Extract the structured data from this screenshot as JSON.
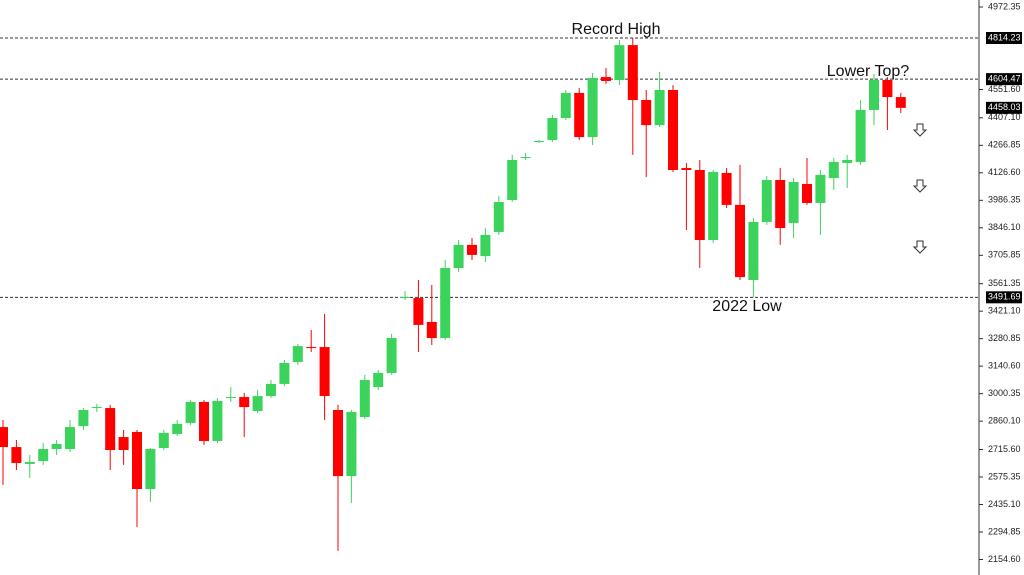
{
  "chart_data": {
    "type": "candlestick",
    "up_color": "#3cd35c",
    "down_color": "#ff0000",
    "open": [
      2830,
      2728,
      2642,
      2657,
      2718,
      2718,
      2835,
      2927,
      2927,
      2779,
      2805,
      2514,
      2723,
      2795,
      2851,
      2958,
      2759,
      2978,
      2983,
      2912,
      2988,
      3050,
      3162,
      3238,
      3238,
      2917,
      2580,
      2881,
      3034,
      3106,
      3488,
      3488,
      3366,
      3284,
      3641,
      3759,
      3702,
      3825,
      3988,
      4202,
      4284,
      4294,
      4406,
      4534,
      4309,
      4615,
      4600,
      4778,
      4498,
      4370,
      4549,
      4151,
      4141,
      3784,
      4126,
      3963,
      3580,
      3876,
      4090,
      3871,
      4070,
      3973,
      4100,
      4177,
      4182,
      4447,
      4600,
      4513
    ],
    "high": [
      2866,
      2764,
      2688,
      2749,
      2764,
      2866,
      2927,
      2948,
      2943,
      2815,
      2815,
      2723,
      2815,
      2866,
      2968,
      2968,
      2978,
      3034,
      3004,
      3019,
      3070,
      3172,
      3254,
      3325,
      3407,
      2943,
      2917,
      3096,
      3121,
      3305,
      3524,
      3580,
      3555,
      3682,
      3784,
      3794,
      3845,
      4008,
      4218,
      4228,
      4294,
      4422,
      4549,
      4559,
      4636,
      4661,
      4804,
      4814,
      4549,
      4641,
      4574,
      4177,
      4192,
      4141,
      4151,
      4167,
      3896,
      4110,
      4151,
      4100,
      4202,
      4141,
      4202,
      4218,
      4498,
      4631,
      4615,
      4534
    ],
    "low": [
      2535,
      2611,
      2570,
      2637,
      2688,
      2703,
      2815,
      2907,
      2611,
      2637,
      2320,
      2448,
      2713,
      2784,
      2841,
      2739,
      2749,
      2958,
      2779,
      2902,
      2978,
      3039,
      3147,
      3213,
      2866,
      2198,
      2443,
      2871,
      3019,
      3096,
      3478,
      3213,
      3249,
      3274,
      3621,
      3682,
      3672,
      3810,
      3978,
      4192,
      4279,
      4284,
      4396,
      4294,
      4268,
      4580,
      4574,
      4218,
      4105,
      4360,
      4131,
      3835,
      3641,
      3769,
      3947,
      3580,
      3492,
      3861,
      3759,
      3794,
      3963,
      3810,
      4039,
      4049,
      4167,
      4370,
      4345,
      4432
    ],
    "close": [
      2728,
      2647,
      2652,
      2718,
      2744,
      2830,
      2917,
      2932,
      2713,
      2713,
      2514,
      2718,
      2800,
      2846,
      2958,
      2759,
      2963,
      2983,
      2932,
      2988,
      3050,
      3157,
      3243,
      3233,
      2988,
      2580,
      2907,
      3070,
      3106,
      3284,
      3493,
      3351,
      3284,
      3641,
      3759,
      3708,
      3810,
      3978,
      4192,
      4207,
      4289,
      4406,
      4534,
      4309,
      4610,
      4595,
      4778,
      4498,
      4370,
      4549,
      4141,
      4141,
      3784,
      4131,
      3963,
      3595,
      3876,
      4090,
      3845,
      4080,
      3973,
      4116,
      4182,
      4192,
      4447,
      4600,
      4513,
      4458.03
    ],
    "levels": [
      4814.23,
      4604.47,
      3491.69
    ],
    "annotations": [
      "Record High",
      "Lower Top?",
      "2022 Low"
    ],
    "ylim": [
      2075.5,
      5008
    ],
    "yticks": [
      4972.35,
      {
        "value": 4551.6,
        "label": "4551.60"
      },
      {
        "value": 4407.1,
        "label": "4407.10"
      },
      4266.85,
      {
        "value": 4126.6,
        "label": "4126.60"
      },
      3986.35,
      {
        "value": 3846.1,
        "label": "3846.10"
      },
      3705.85,
      3561.35,
      {
        "value": 3421.1,
        "label": "3421.10"
      },
      3280.85,
      {
        "value": 3140.6,
        "label": "3140.60"
      },
      3000.35,
      {
        "value": 2860.1,
        "label": "2860.10"
      },
      {
        "value": 2715.6,
        "label": "2715.60"
      },
      2575.35,
      {
        "value": 2435.1,
        "label": "2435.10"
      },
      2294.85,
      {
        "value": 2154.6,
        "label": "2154.60"
      }
    ],
    "grid": false
  }
}
